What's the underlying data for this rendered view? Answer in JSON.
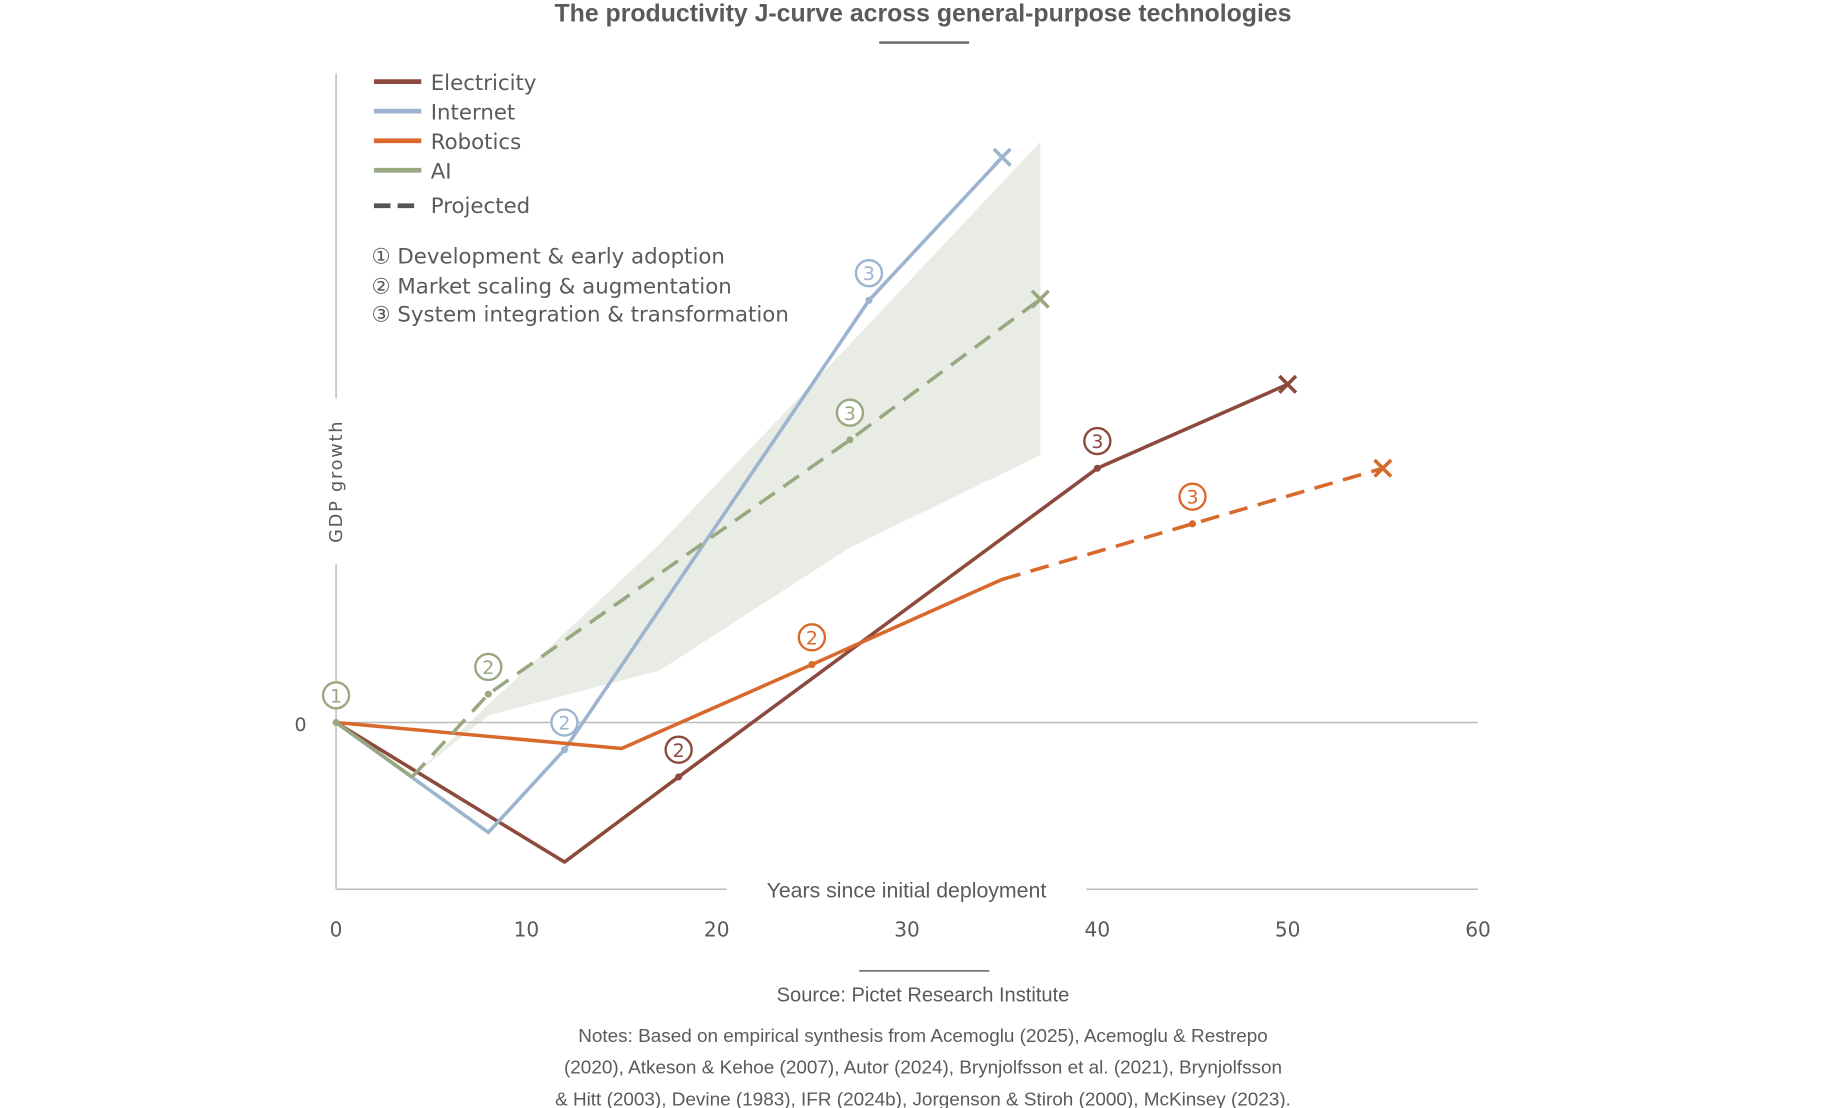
{
  "chart_data": {
    "type": "line",
    "title": "The productivity J-curve across general-purpose technologies",
    "xlabel": "Years since initial deployment",
    "ylabel": "GDP growth",
    "xlim": [
      0,
      60
    ],
    "ylim": [
      -14,
      55
    ],
    "xticks": [
      "0",
      "10",
      "20",
      "30",
      "40",
      "50",
      "60"
    ],
    "yticks": [
      "0"
    ],
    "grid": false,
    "legend_position": "top-left",
    "legend": {
      "series": [
        "Electricity",
        "Internet",
        "Robotics",
        "AI"
      ],
      "projected_label": "Projected",
      "stages": [
        "① Development & early adoption",
        "② Market scaling & augmentation",
        "③ System integration & transformation"
      ]
    },
    "series": [
      {
        "name": "Electricity",
        "color": "#8B4A3C",
        "solid": [
          [
            0,
            0
          ],
          [
            12,
            -11.8
          ],
          [
            18,
            -4.6
          ],
          [
            40,
            21.5
          ],
          [
            50,
            28.6
          ]
        ],
        "dashed": [],
        "markers": [
          {
            "x": 18,
            "y": -4.6,
            "label": "2"
          },
          {
            "x": 40,
            "y": 21.5,
            "label": "3"
          }
        ],
        "end": [
          50,
          28.6
        ]
      },
      {
        "name": "Internet",
        "color": "#9DB4CF",
        "solid": [
          [
            0,
            0
          ],
          [
            8,
            -9.3
          ],
          [
            12,
            -2.3
          ],
          [
            28,
            35.7
          ],
          [
            35,
            47.8
          ]
        ],
        "dashed": [],
        "markers": [
          {
            "x": 12,
            "y": -2.3,
            "label": "2"
          },
          {
            "x": 28,
            "y": 35.7,
            "label": "3"
          }
        ],
        "end": [
          35,
          47.8
        ]
      },
      {
        "name": "Robotics",
        "color": "#D9692A",
        "solid": [
          [
            0,
            0
          ],
          [
            15,
            -2.2
          ],
          [
            25,
            4.9
          ],
          [
            35,
            12.1
          ]
        ],
        "dashed": [
          [
            35,
            12.1
          ],
          [
            45,
            16.8
          ],
          [
            55,
            21.5
          ]
        ],
        "markers": [
          {
            "x": 25,
            "y": 4.9,
            "label": "2"
          },
          {
            "x": 45,
            "y": 16.8,
            "label": "3"
          }
        ],
        "end": [
          55,
          21.5
        ]
      },
      {
        "name": "AI",
        "color": "#9AA882",
        "solid": [
          [
            0,
            0
          ],
          [
            4,
            -4.6
          ]
        ],
        "dashed": [
          [
            4,
            -4.6
          ],
          [
            8,
            2.4
          ],
          [
            27,
            23.9
          ],
          [
            37,
            35.8
          ]
        ],
        "markers": [
          {
            "x": 0,
            "y": 0,
            "label": "1"
          },
          {
            "x": 8,
            "y": 2.4,
            "label": "2"
          },
          {
            "x": 27,
            "y": 23.9,
            "label": "3"
          }
        ],
        "end": [
          37,
          35.8
        ],
        "band_upper": [
          [
            4,
            -4.6
          ],
          [
            8,
            1.5
          ],
          [
            17,
            15.1
          ],
          [
            27,
            32
          ],
          [
            37,
            49.1
          ]
        ],
        "band_lower": [
          [
            37,
            22.6
          ],
          [
            27,
            14.8
          ],
          [
            17,
            4.4
          ],
          [
            8,
            0.6
          ],
          [
            4,
            -4.6
          ]
        ],
        "band_color": "#E9ECE4"
      }
    ],
    "source": "Source: Pictet Research Institute",
    "notes": [
      "Notes: Based on empirical synthesis from Acemoglu (2025), Acemoglu & Restrepo",
      "(2020), Atkeson & Kehoe (2007), Autor (2024), Brynjolfsson et al. (2021), Brynjolfsson",
      "& Hitt (2003), Devine (1983), IFR (2024b), Jorgenson & Stiroh (2000), McKinsey (2023)."
    ]
  }
}
